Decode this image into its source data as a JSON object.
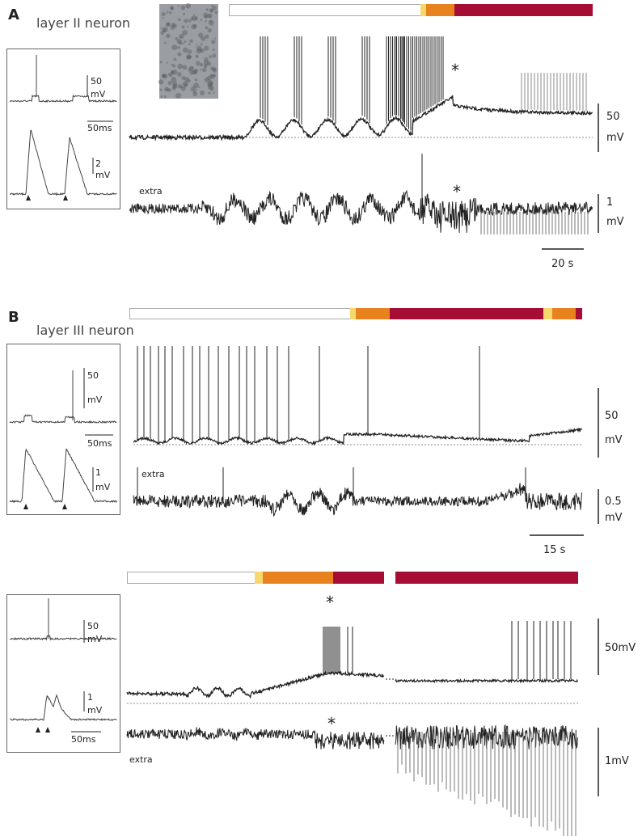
{
  "panel_a": {
    "label": "A",
    "title": "layer II neuron",
    "inset": {
      "top_scale": "50",
      "top_unit": "mV",
      "time": "50ms",
      "bottom_scale": "2",
      "bottom_unit": "mV"
    },
    "asterisk_intra": "*",
    "extra": "extra",
    "asterisk_extra": "*",
    "intra_scale": "50",
    "intra_unit": "mV",
    "extra_scale": "1",
    "extra_unit": "mV",
    "time_bar": "20 s"
  },
  "panel_b": {
    "label": "B",
    "title": "layer III neuron",
    "inset": {
      "top_scale": "50",
      "top_unit": "mV",
      "time": "50ms",
      "bottom_scale": "1",
      "bottom_unit": "mV"
    },
    "extra": "extra",
    "intra_scale": "50",
    "intra_unit": "mV",
    "extra_scale": "0.5",
    "extra_unit": "mV",
    "time_bar": "15 s"
  },
  "panel_c": {
    "inset": {
      "top_scale": "50",
      "top_unit": "mV",
      "bottom_scale": "1",
      "bottom_unit": "mV",
      "time": "50ms"
    },
    "asterisk_intra": "*",
    "asterisk_extra": "*",
    "extra": "extra",
    "intra_scale": "50mV",
    "extra_scale": "1mV"
  }
}
